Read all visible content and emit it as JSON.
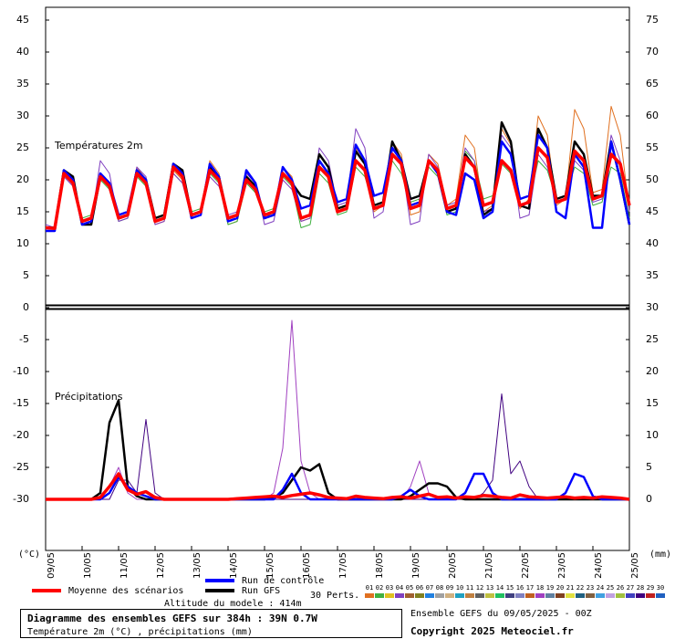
{
  "chart_data": {
    "type": "line",
    "title": "Diagramme des ensembles GEFS sur 384h : 39N 0.7W",
    "subtitle": "Température 2m (°C) , précipitations (mm)",
    "annotations": [
      "Températures 2m",
      "Précipitations",
      "Altitude du modele : 414m",
      "Ensemble GEFS du 09/05/2025 - 00Z",
      "Copyright 2025 Meteociel.fr"
    ],
    "ylabel": "(°C)",
    "y2label": "(mm)",
    "perturbations_label": "30 Perts.",
    "perturbation_keys": [
      {
        "label": "01",
        "color": "#e07020"
      },
      {
        "label": "02",
        "color": "#40b040"
      },
      {
        "label": "03",
        "color": "#e0c020"
      },
      {
        "label": "04",
        "color": "#8040c0"
      },
      {
        "label": "05",
        "color": "#a06030"
      },
      {
        "label": "06",
        "color": "#808020"
      },
      {
        "label": "07",
        "color": "#2080e0"
      },
      {
        "label": "08",
        "color": "#a0a0a0"
      },
      {
        "label": "09",
        "color": "#d0b080"
      },
      {
        "label": "10",
        "color": "#20a0c0"
      },
      {
        "label": "11",
        "color": "#c08040"
      },
      {
        "label": "12",
        "color": "#606060"
      },
      {
        "label": "13",
        "color": "#c0c040"
      },
      {
        "label": "14",
        "color": "#20c060"
      },
      {
        "label": "15",
        "color": "#404080"
      },
      {
        "label": "16",
        "color": "#8080c0"
      },
      {
        "label": "17",
        "color": "#c06020"
      },
      {
        "label": "18",
        "color": "#a040c0"
      },
      {
        "label": "19",
        "color": "#6080a0"
      },
      {
        "label": "20",
        "color": "#804020"
      },
      {
        "label": "21",
        "color": "#e0e040"
      },
      {
        "label": "22",
        "color": "#206080"
      },
      {
        "label": "23",
        "color": "#806040"
      },
      {
        "label": "24",
        "color": "#40a0e0"
      },
      {
        "label": "25",
        "color": "#c0a0e0"
      },
      {
        "label": "26",
        "color": "#a0c040"
      },
      {
        "label": "27",
        "color": "#4040c0"
      },
      {
        "label": "28",
        "color": "#400080"
      },
      {
        "label": "29",
        "color": "#c02020"
      },
      {
        "label": "30",
        "color": "#2060c0"
      }
    ],
    "x": [
      0,
      6,
      12,
      18,
      24,
      30,
      36,
      42,
      48,
      54,
      60,
      66,
      72,
      78,
      84,
      90,
      96,
      102,
      108,
      114,
      120,
      126,
      132,
      138,
      144,
      150,
      156,
      162,
      168,
      174,
      180,
      186,
      192,
      198,
      204,
      210,
      216,
      222,
      228,
      234,
      240,
      246,
      252,
      258,
      264,
      270,
      276,
      282,
      288,
      294,
      300,
      306,
      312,
      318,
      324,
      330,
      336,
      342,
      348,
      354,
      360,
      366,
      372,
      378,
      384
    ],
    "xlim": [
      0,
      384
    ],
    "xticks": [
      {
        "value": 0,
        "label": "09/05"
      },
      {
        "value": 24,
        "label": "10/05"
      },
      {
        "value": 48,
        "label": "11/05"
      },
      {
        "value": 72,
        "label": "12/05"
      },
      {
        "value": 96,
        "label": "13/05"
      },
      {
        "value": 120,
        "label": "14/05"
      },
      {
        "value": 144,
        "label": "15/05"
      },
      {
        "value": 168,
        "label": "16/05"
      },
      {
        "value": 192,
        "label": "17/05"
      },
      {
        "value": 216,
        "label": "18/05"
      },
      {
        "value": 240,
        "label": "19/05"
      },
      {
        "value": 264,
        "label": "20/05"
      },
      {
        "value": 288,
        "label": "21/05"
      },
      {
        "value": 312,
        "label": "22/05"
      },
      {
        "value": 336,
        "label": "23/05"
      },
      {
        "value": 360,
        "label": "24/05"
      },
      {
        "value": 384,
        "label": "25/05"
      }
    ],
    "ylim": [
      -38,
      46
    ],
    "yticks": [
      -30,
      -25,
      -20,
      -15,
      -10,
      -5,
      0,
      5,
      10,
      15,
      20,
      25,
      30,
      35,
      40,
      45
    ],
    "y2lim": [
      -8,
      76
    ],
    "y2ticks": [
      0,
      5,
      10,
      15,
      20,
      25,
      30,
      35,
      40,
      45,
      50,
      55,
      60,
      65,
      70,
      75
    ],
    "grid": false,
    "series": [
      {
        "color": "#e07020",
        "line_width": 1,
        "values": [
          12,
          12,
          20.5,
          19.5,
          13,
          13.5,
          21,
          19.5,
          14.5,
          15,
          22,
          20,
          13,
          13.5,
          21.5,
          20,
          14,
          14.5,
          23,
          21,
          13,
          13.5,
          20.5,
          19,
          14,
          15,
          22,
          20.5,
          13.5,
          14,
          24,
          22,
          15,
          16,
          25,
          23,
          15,
          16,
          26,
          24,
          14.5,
          15,
          24,
          22.5,
          16,
          17,
          27,
          25,
          15,
          16,
          28,
          25.5,
          15.5,
          17,
          30,
          27,
          16,
          17,
          31,
          28,
          18,
          18.5,
          31.5,
          27,
          15
        ]
      },
      {
        "color": "#40b040",
        "line_width": 1,
        "values": [
          12.5,
          12.5,
          21.5,
          20,
          14,
          14.5,
          20,
          18.5,
          13.5,
          14,
          20.5,
          19,
          14,
          14.5,
          21,
          19.5,
          15,
          15.5,
          21,
          19.5,
          13,
          13.5,
          19.5,
          18,
          15,
          15.5,
          20.5,
          19,
          12.5,
          13,
          21,
          19.5,
          14.5,
          15,
          22,
          20.5,
          16,
          16.5,
          23,
          21,
          16.5,
          17,
          22,
          20.5,
          14.5,
          15,
          24.5,
          23,
          17,
          17.5,
          22.5,
          21,
          16,
          16.5,
          23,
          21.5,
          17,
          17.5,
          22,
          21,
          16,
          16.5,
          22,
          21,
          14
        ]
      },
      {
        "color": "#8040c0",
        "line_width": 1,
        "values": [
          13,
          12.5,
          20.5,
          19,
          13,
          13.5,
          23,
          21,
          13.5,
          14,
          22,
          20.5,
          13,
          13.5,
          21,
          19.5,
          14,
          14.5,
          20.5,
          19,
          14.5,
          15,
          21,
          19.5,
          13,
          13.5,
          20,
          18.5,
          13.5,
          14,
          25,
          23,
          16,
          16.5,
          28,
          25,
          14,
          15,
          25,
          23,
          13,
          13.5,
          24,
          22,
          16,
          16.5,
          25,
          23,
          15,
          15.5,
          27,
          25,
          14,
          14.5,
          24,
          22,
          17,
          17.5,
          23,
          21.5,
          16.5,
          17,
          27,
          23,
          15
        ]
      },
      {
        "name": "Run GFS",
        "color": "#000000",
        "line_width": 2.5,
        "values": [
          12.5,
          12.5,
          21.5,
          20.5,
          13,
          13,
          20.5,
          19,
          14,
          14.5,
          21.5,
          20,
          14,
          14.5,
          22.5,
          21.5,
          14.5,
          15,
          22,
          20.5,
          14,
          14.5,
          20.5,
          19,
          14,
          14.5,
          21,
          19.5,
          17.5,
          17,
          24,
          22,
          15.5,
          16,
          24.5,
          22.5,
          16,
          16.5,
          26,
          23,
          17,
          17.5,
          23,
          21.5,
          15,
          15.5,
          24,
          22,
          14.5,
          15.5,
          29,
          26,
          16,
          15.5,
          28,
          25,
          17,
          17.5,
          26,
          24,
          17.5,
          17.5,
          26,
          20,
          13
        ]
      },
      {
        "name": "Run de contrôle",
        "color": "#0000ff",
        "line_width": 2.5,
        "values": [
          12,
          12,
          21.5,
          20,
          13,
          13.5,
          21,
          19.5,
          14.5,
          15,
          21.5,
          20,
          13.5,
          14,
          22.5,
          21,
          14,
          14.5,
          22.5,
          20.5,
          13.5,
          14,
          21.5,
          19.5,
          14,
          14.5,
          22,
          20,
          15.5,
          16,
          23,
          21,
          16.5,
          17,
          25.5,
          23,
          17.5,
          18,
          25,
          23,
          16,
          16.5,
          23,
          21,
          15,
          14.5,
          21,
          20,
          14,
          15,
          26,
          24,
          17,
          17.5,
          27,
          25,
          15,
          14,
          24,
          22,
          12.5,
          12.5,
          26,
          20,
          13
        ]
      },
      {
        "name": "Moyenne des scénarios",
        "color": "#ff0000",
        "line_width": 3.5,
        "values": [
          12.5,
          12.4,
          21,
          19.5,
          13.5,
          14,
          20.5,
          19,
          14,
          14.5,
          21,
          19.5,
          13.5,
          14,
          22,
          20.5,
          14.5,
          15,
          21.5,
          20,
          14,
          14.5,
          20,
          18.5,
          14.5,
          15,
          21,
          19.5,
          14,
          14.5,
          22,
          20.5,
          15,
          15.5,
          23,
          21.5,
          15.5,
          16,
          24,
          22.5,
          15.5,
          16,
          23,
          21.5,
          15.5,
          16,
          23.5,
          22,
          16,
          16.5,
          23,
          21.5,
          16,
          16.5,
          25,
          23.5,
          16.5,
          17,
          24.5,
          23,
          17,
          17.5,
          24,
          22.5,
          16
        ]
      },
      {
        "axis": "y2",
        "color": "#a040c0",
        "line_width": 1,
        "values": [
          0,
          0,
          0,
          0,
          0,
          0,
          0,
          2,
          5,
          1,
          0,
          0,
          0,
          0,
          0,
          0,
          0,
          0,
          0,
          0,
          0,
          0,
          0,
          0,
          0,
          1,
          8,
          28,
          6,
          1,
          0,
          0,
          0,
          0,
          0,
          0,
          0,
          0,
          0,
          0,
          2,
          6,
          1,
          0,
          0,
          0,
          0,
          0,
          0,
          0,
          0,
          0,
          0,
          0,
          0,
          0,
          0,
          0,
          0,
          0,
          0,
          0,
          0,
          0,
          0
        ]
      },
      {
        "axis": "y2",
        "color": "#400080",
        "line_width": 1,
        "values": [
          0,
          0,
          0,
          0,
          0,
          0,
          0,
          0,
          3,
          3,
          1,
          12.5,
          1,
          0,
          0,
          0,
          0,
          0,
          0,
          0,
          0,
          0,
          0,
          0,
          0,
          0,
          0,
          0,
          0,
          0,
          0,
          0,
          0,
          0,
          0,
          0,
          0,
          0,
          0,
          0,
          0,
          0,
          0,
          0,
          0,
          0,
          0,
          0,
          1,
          3,
          16.5,
          4,
          6,
          2,
          0,
          0,
          0,
          0,
          0,
          0,
          0,
          0,
          0,
          0,
          0
        ]
      },
      {
        "axis": "y2",
        "color": "#000000",
        "line_width": 2.5,
        "values": [
          0,
          0,
          0,
          0,
          0,
          0,
          1,
          12,
          15.5,
          2,
          0.5,
          0,
          0,
          0,
          0,
          0,
          0,
          0,
          0,
          0,
          0,
          0,
          0,
          0,
          0,
          0.3,
          1,
          3,
          5,
          4.5,
          5.5,
          1,
          0,
          0,
          0,
          0,
          0,
          0,
          0,
          0,
          0.5,
          1.5,
          2.5,
          2.5,
          2,
          0.3,
          0,
          0,
          0,
          0,
          0,
          0,
          0,
          0,
          0,
          0,
          0,
          0,
          0,
          0,
          0,
          0,
          0,
          0,
          0
        ]
      },
      {
        "axis": "y2",
        "color": "#0000ff",
        "line_width": 2.5,
        "values": [
          0,
          0,
          0,
          0,
          0,
          0,
          0,
          1,
          3.5,
          2,
          1,
          0.5,
          0,
          0,
          0,
          0,
          0,
          0,
          0,
          0,
          0,
          0,
          0,
          0,
          0,
          0,
          1.5,
          4,
          1,
          0,
          0,
          0,
          0,
          0,
          0,
          0,
          0,
          0,
          0,
          0.5,
          1.5,
          0.5,
          0,
          0,
          0,
          0,
          1,
          4,
          4,
          1,
          0,
          0,
          0,
          0,
          0,
          0,
          0,
          1,
          4,
          3.5,
          0.5,
          0,
          0,
          0,
          0
        ]
      },
      {
        "axis": "y2",
        "color": "#ff0000",
        "line_width": 3.5,
        "values": [
          0,
          0,
          0,
          0,
          0,
          0,
          0.3,
          2,
          4,
          1.5,
          0.8,
          1.2,
          0.3,
          0,
          0,
          0,
          0,
          0,
          0,
          0,
          0,
          0.1,
          0.2,
          0.3,
          0.4,
          0.5,
          0.3,
          0.6,
          0.8,
          1,
          0.7,
          0.3,
          0.2,
          0.1,
          0.5,
          0.3,
          0.2,
          0.1,
          0.3,
          0.4,
          0.2,
          0.5,
          0.8,
          0.3,
          0.4,
          0.2,
          0.4,
          0.3,
          0.6,
          0.5,
          0.3,
          0.2,
          0.7,
          0.4,
          0.3,
          0.2,
          0.3,
          0.4,
          0.2,
          0.3,
          0.2,
          0.4,
          0.3,
          0.2,
          0
        ]
      }
    ]
  }
}
